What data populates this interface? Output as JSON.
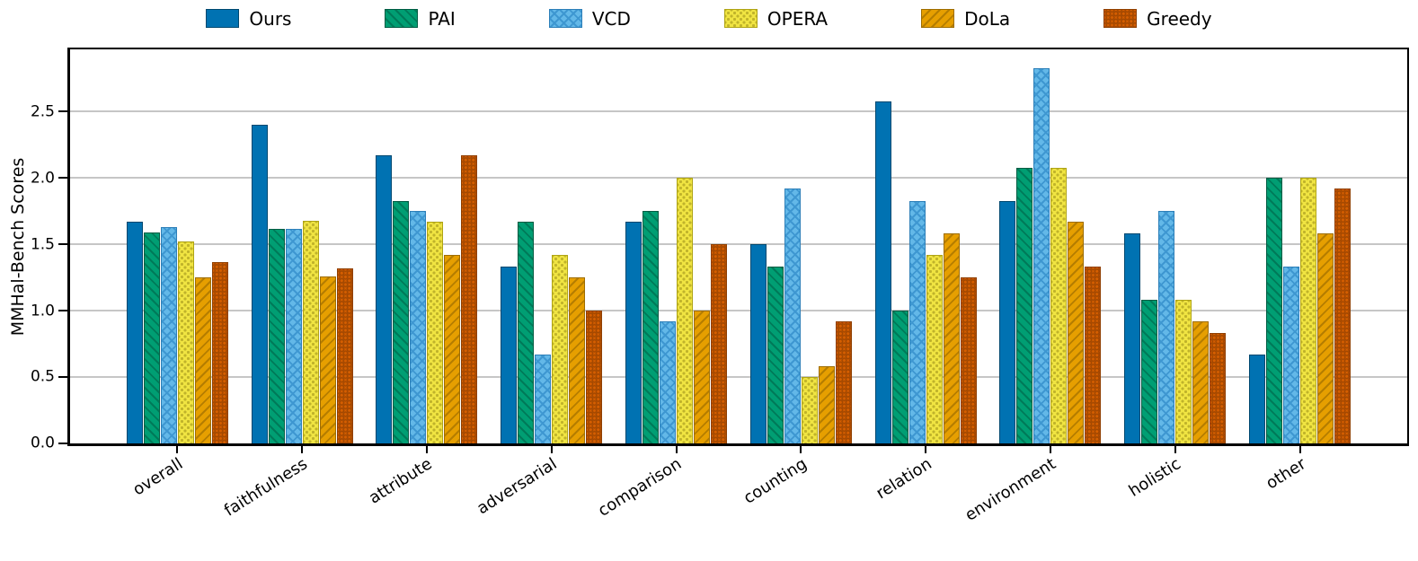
{
  "figure": {
    "background": "#ffffff",
    "grid_color": "#c6c6c6"
  },
  "chart_data": {
    "type": "bar",
    "title": "",
    "xlabel": "",
    "ylabel": "MMHal-Bench Scores",
    "ylim": [
      0,
      2.97
    ],
    "yticks": [
      0,
      0.5,
      1,
      1.5,
      2,
      2.5
    ],
    "ytick_labels": [
      "0.0",
      "0.5",
      "1.0",
      "1.5",
      "2.0",
      "2.5"
    ],
    "grid": true,
    "legend_position": "top",
    "x_label_rotation_deg": 32,
    "categories": [
      "overall",
      "faithfulness",
      "attribute",
      "adversarial",
      "comparison",
      "counting",
      "relation",
      "environment",
      "holistic",
      "other"
    ],
    "series": [
      {
        "name": "Ours",
        "hatch": "none",
        "color": "#0072B2",
        "edge_color": "#00486F",
        "hatch_color": "#00486F",
        "values": [
          1.67,
          2.4,
          2.17,
          1.33,
          1.67,
          1.5,
          2.58,
          1.83,
          1.58,
          0.67
        ]
      },
      {
        "name": "PAI",
        "hatch": "\\",
        "color": "#009E73",
        "edge_color": "#005C43",
        "hatch_color": "#007A59",
        "values": [
          1.59,
          1.62,
          1.83,
          1.67,
          1.75,
          1.33,
          1.0,
          2.08,
          1.08,
          2.0
        ]
      },
      {
        "name": "VCD",
        "hatch": "x",
        "color": "#63B8E8",
        "edge_color": "#2D7FB8",
        "hatch_color": "#3E97D1",
        "values": [
          1.63,
          1.62,
          1.75,
          0.67,
          0.92,
          1.92,
          1.83,
          2.83,
          1.75,
          1.33
        ]
      },
      {
        "name": "OPERA",
        "hatch": ".",
        "color": "#F0E442",
        "edge_color": "#AFA415",
        "hatch_color": "#C0B32A",
        "values": [
          1.52,
          1.68,
          1.67,
          1.42,
          2.0,
          0.5,
          1.42,
          2.08,
          1.08,
          2.0
        ]
      },
      {
        "name": "DoLa",
        "hatch": "/",
        "color": "#E69F00",
        "edge_color": "#9E6D00",
        "hatch_color": "#B57D00",
        "values": [
          1.25,
          1.26,
          1.42,
          1.25,
          1.0,
          0.58,
          1.58,
          1.67,
          0.92,
          1.58
        ]
      },
      {
        "name": "Greedy",
        "hatch": "o",
        "color": "#D55E00",
        "edge_color": "#8F3F00",
        "hatch_color": "#A34800",
        "values": [
          1.37,
          1.32,
          2.17,
          1.0,
          1.5,
          0.92,
          1.25,
          1.33,
          0.83,
          1.92
        ]
      }
    ]
  }
}
